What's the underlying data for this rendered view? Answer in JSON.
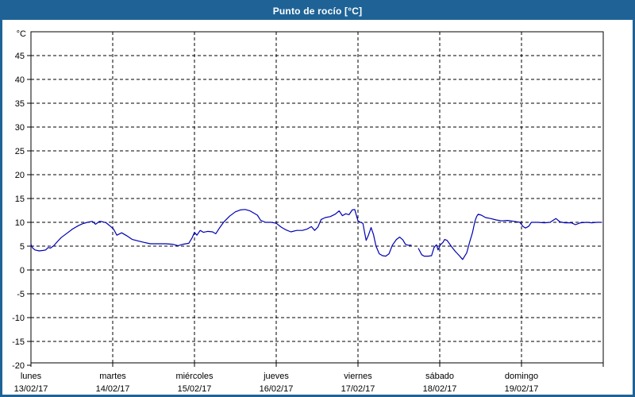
{
  "window": {
    "title": "Punto de rocío [°C]"
  },
  "colors": {
    "titlebar": "#1f6396",
    "window_border": "#1f6396",
    "background": "#ffffff",
    "axis": "#000000",
    "grid": "#000000",
    "line": "#0000b4"
  },
  "chart_data": {
    "type": "line",
    "title": "Punto de rocío [°C]",
    "y_unit_label": "°C",
    "ylim": [
      -20,
      50
    ],
    "y_tick_values": [
      -20,
      -15,
      -10,
      -5,
      0,
      5,
      10,
      15,
      20,
      25,
      30,
      35,
      40,
      45
    ],
    "grid": "dashed",
    "legend": "none",
    "xlim_days": [
      0,
      7
    ],
    "x_days": [
      {
        "name": "lunes",
        "date": "13/02/17"
      },
      {
        "name": "martes",
        "date": "14/02/17"
      },
      {
        "name": "miércoles",
        "date": "15/02/17"
      },
      {
        "name": "jueves",
        "date": "16/02/17"
      },
      {
        "name": "viernes",
        "date": "17/02/17"
      },
      {
        "name": "sábado",
        "date": "18/02/17"
      },
      {
        "name": "domingo",
        "date": "19/02/17"
      }
    ],
    "series": [
      {
        "name": "Punto de rocío",
        "unit": "°C",
        "points": [
          [
            0.0,
            5.4
          ],
          [
            0.02,
            4.6
          ],
          [
            0.05,
            4.2
          ],
          [
            0.1,
            4.0
          ],
          [
            0.15,
            4.1
          ],
          [
            0.18,
            4.2
          ],
          [
            0.21,
            4.7
          ],
          [
            0.24,
            4.6
          ],
          [
            0.28,
            5.1
          ],
          [
            0.32,
            5.9
          ],
          [
            0.37,
            6.8
          ],
          [
            0.44,
            7.7
          ],
          [
            0.51,
            8.6
          ],
          [
            0.58,
            9.3
          ],
          [
            0.63,
            9.7
          ],
          [
            0.69,
            10.0
          ],
          [
            0.75,
            10.2
          ],
          [
            0.79,
            9.6
          ],
          [
            0.84,
            10.2
          ],
          [
            0.88,
            10.1
          ],
          [
            0.92,
            9.9
          ],
          [
            0.97,
            9.2
          ],
          [
            1.01,
            8.6
          ],
          [
            1.05,
            7.3
          ],
          [
            1.11,
            7.8
          ],
          [
            1.17,
            7.2
          ],
          [
            1.24,
            6.4
          ],
          [
            1.31,
            6.1
          ],
          [
            1.38,
            5.8
          ],
          [
            1.46,
            5.5
          ],
          [
            1.56,
            5.5
          ],
          [
            1.65,
            5.5
          ],
          [
            1.73,
            5.4
          ],
          [
            1.8,
            5.1
          ],
          [
            1.86,
            5.4
          ],
          [
            1.93,
            5.6
          ],
          [
            1.97,
            6.7
          ],
          [
            2.0,
            7.9
          ],
          [
            2.03,
            7.3
          ],
          [
            2.07,
            8.3
          ],
          [
            2.11,
            7.9
          ],
          [
            2.16,
            8.1
          ],
          [
            2.22,
            8.0
          ],
          [
            2.26,
            7.6
          ],
          [
            2.31,
            8.9
          ],
          [
            2.36,
            10.1
          ],
          [
            2.43,
            11.3
          ],
          [
            2.5,
            12.2
          ],
          [
            2.56,
            12.6
          ],
          [
            2.62,
            12.7
          ],
          [
            2.68,
            12.4
          ],
          [
            2.73,
            11.9
          ],
          [
            2.77,
            11.5
          ],
          [
            2.81,
            10.4
          ],
          [
            2.87,
            10.0
          ],
          [
            2.94,
            10.0
          ],
          [
            3.0,
            9.8
          ],
          [
            3.06,
            9.0
          ],
          [
            3.12,
            8.4
          ],
          [
            3.18,
            8.0
          ],
          [
            3.25,
            8.3
          ],
          [
            3.32,
            8.3
          ],
          [
            3.38,
            8.6
          ],
          [
            3.43,
            9.1
          ],
          [
            3.47,
            8.3
          ],
          [
            3.51,
            9.0
          ],
          [
            3.55,
            10.6
          ],
          [
            3.6,
            11.0
          ],
          [
            3.66,
            11.2
          ],
          [
            3.72,
            11.7
          ],
          [
            3.77,
            12.4
          ],
          [
            3.81,
            11.4
          ],
          [
            3.85,
            11.8
          ],
          [
            3.89,
            11.6
          ],
          [
            3.93,
            12.6
          ],
          [
            3.96,
            12.7
          ],
          [
            4.0,
            10.3
          ],
          [
            4.03,
            10.0
          ],
          [
            4.06,
            9.8
          ],
          [
            4.08,
            8.0
          ],
          [
            4.1,
            6.2
          ],
          [
            4.13,
            7.4
          ],
          [
            4.16,
            8.9
          ],
          [
            4.19,
            7.4
          ],
          [
            4.22,
            5.0
          ],
          [
            4.26,
            3.4
          ],
          [
            4.3,
            3.0
          ],
          [
            4.34,
            2.9
          ],
          [
            4.38,
            3.4
          ],
          [
            4.42,
            5.2
          ],
          [
            4.47,
            6.4
          ],
          [
            4.51,
            6.9
          ],
          [
            4.55,
            6.3
          ],
          [
            4.58,
            5.4
          ],
          [
            4.61,
            5.2
          ],
          [
            4.65,
            5.2
          ],
          null,
          [
            4.74,
            4.5
          ],
          [
            4.78,
            3.2
          ],
          [
            4.81,
            2.9
          ],
          [
            4.86,
            2.9
          ],
          [
            4.9,
            3.0
          ],
          [
            4.93,
            4.7
          ],
          [
            4.96,
            5.3
          ],
          [
            4.98,
            4.2
          ],
          [
            5.01,
            5.3
          ],
          [
            5.04,
            5.8
          ],
          [
            5.06,
            6.4
          ],
          [
            5.09,
            6.2
          ],
          [
            5.14,
            5.0
          ],
          [
            5.19,
            3.9
          ],
          [
            5.24,
            3.0
          ],
          [
            5.28,
            2.2
          ],
          [
            5.33,
            3.6
          ],
          [
            5.37,
            6.1
          ],
          [
            5.4,
            7.8
          ],
          [
            5.43,
            10.2
          ],
          [
            5.45,
            11.2
          ],
          [
            5.47,
            11.7
          ],
          [
            5.51,
            11.5
          ],
          [
            5.56,
            11.0
          ],
          [
            5.62,
            10.8
          ],
          [
            5.69,
            10.5
          ],
          [
            5.76,
            10.3
          ],
          [
            5.83,
            10.4
          ],
          [
            5.91,
            10.2
          ],
          [
            5.98,
            10.0
          ],
          [
            6.02,
            9.1
          ],
          [
            6.05,
            8.8
          ],
          [
            6.09,
            9.2
          ],
          [
            6.12,
            10.0
          ],
          [
            6.2,
            10.0
          ],
          [
            6.28,
            9.9
          ],
          [
            6.35,
            10.0
          ],
          [
            6.42,
            10.8
          ],
          [
            6.47,
            10.1
          ],
          [
            6.53,
            9.9
          ],
          [
            6.61,
            9.9
          ],
          [
            6.66,
            9.5
          ],
          [
            6.72,
            9.9
          ],
          [
            6.8,
            10.0
          ],
          [
            6.86,
            9.9
          ],
          [
            6.92,
            10.0
          ],
          [
            6.98,
            10.0
          ]
        ]
      }
    ]
  }
}
